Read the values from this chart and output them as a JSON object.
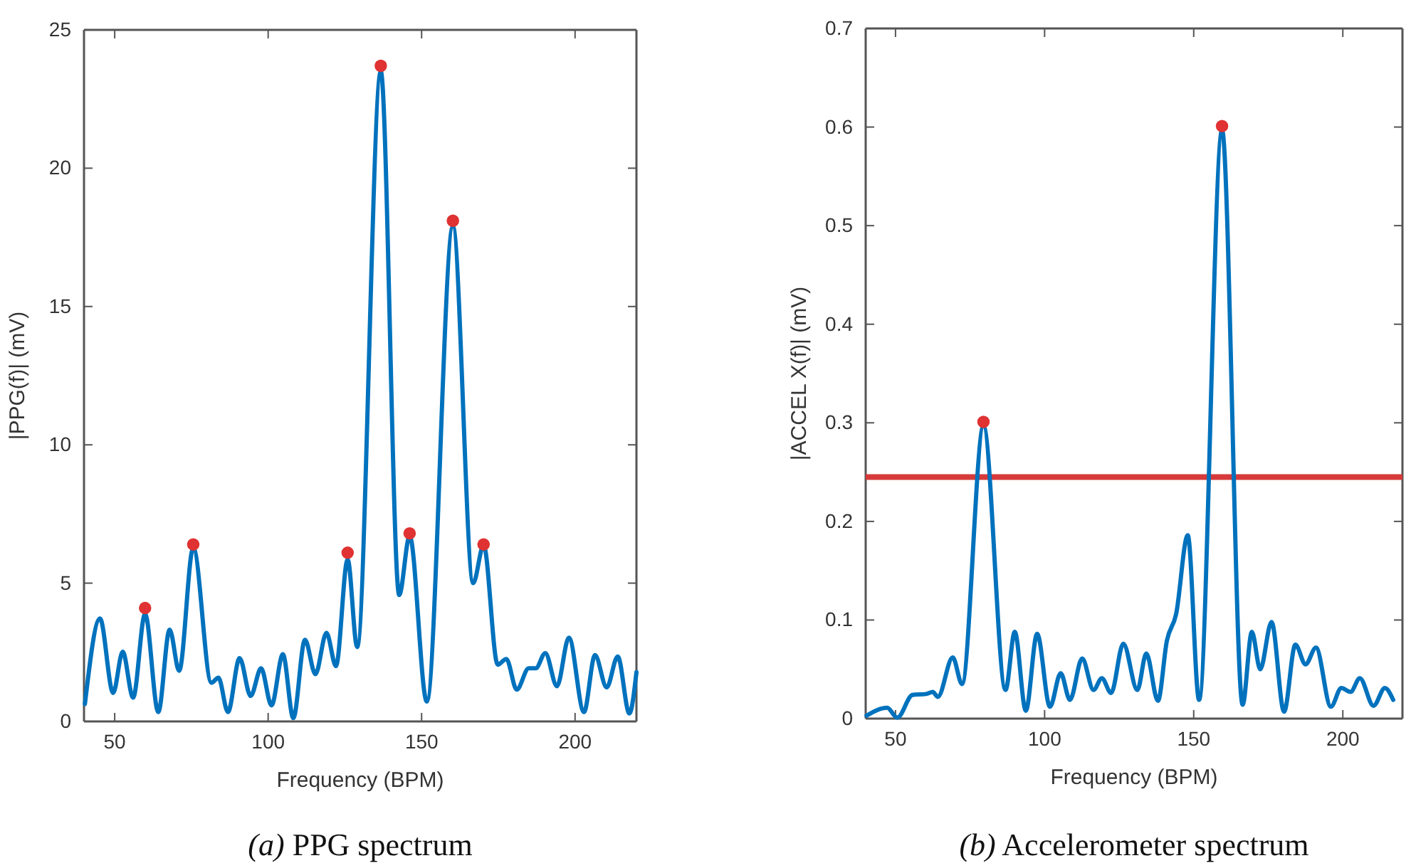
{
  "chart_data": [
    {
      "type": "line",
      "xlabel": "Frequency (BPM)",
      "ylabel": "|PPG(f)| (mV)",
      "xlim": [
        40,
        220
      ],
      "ylim": [
        0,
        25
      ],
      "xticks": [
        50,
        100,
        150,
        200
      ],
      "yticks": [
        0,
        5,
        10,
        15,
        20,
        25
      ],
      "grid": false,
      "annotations": [
        "(a) PPG spectrum"
      ],
      "series": [
        {
          "type": "line",
          "color": "#0072bd",
          "marker": "none",
          "x": [
            40.3,
            45.2,
            49.5,
            52.6,
            56,
            59.9,
            64.2,
            67.9,
            71,
            75.6,
            81.5,
            83.8,
            86.9,
            90.7,
            94.3,
            97.7,
            101.1,
            104.8,
            108.2,
            112,
            115.4,
            119,
            122.1,
            125.9,
            129,
            136.7,
            142.7,
            146.1,
            151.7,
            160.2,
            166.8,
            170.2,
            174.8,
            177.6,
            181,
            184.9,
            187.2,
            190.3,
            194.1,
            198,
            202.9,
            206.5,
            210.3,
            213.9,
            217.7,
            220
          ],
          "values": [
            0.63,
            3.72,
            1.03,
            2.52,
            0.86,
            3.89,
            0.34,
            3.32,
            1.83,
            6.28,
            1.4,
            1.58,
            0.34,
            2.29,
            0.92,
            1.92,
            0.58,
            2.43,
            0.12,
            2.95,
            1.71,
            3.2,
            2.0,
            5.86,
            2.69,
            23.5,
            4.57,
            6.71,
            0.72,
            17.9,
            5.0,
            6.37,
            2.05,
            2.26,
            1.15,
            1.92,
            1.92,
            2.47,
            1.27,
            3.03,
            0.34,
            2.4,
            1.23,
            2.35,
            0.29,
            1.78
          ]
        },
        {
          "type": "scatter",
          "color": "#e03232",
          "marker": "circle",
          "x": [
            59.9,
            75.6,
            125.9,
            136.7,
            146.1,
            160.2,
            170.2
          ],
          "values": [
            4.1,
            6.4,
            6.1,
            23.7,
            6.8,
            18.1,
            6.4
          ]
        }
      ]
    },
    {
      "type": "line",
      "xlabel": "Frequency (BPM)",
      "ylabel": "|ACCEL X(f)| (mV)",
      "xlim": [
        40,
        220
      ],
      "ylim": [
        0,
        0.7
      ],
      "xticks": [
        50,
        100,
        150,
        200
      ],
      "yticks": [
        0,
        0.1,
        0.2,
        0.3,
        0.4,
        0.5,
        0.6,
        0.7
      ],
      "grid": false,
      "annotations": [
        "(b) Accelerometer spectrum"
      ],
      "ref_lines": [
        {
          "axis": "y",
          "value": 0.245,
          "color": "#d63a3a"
        }
      ],
      "series": [
        {
          "type": "line",
          "color": "#0072bd",
          "marker": "none",
          "x": [
            40.3,
            47.2,
            50.6,
            55.7,
            60.3,
            62.5,
            64.2,
            69.2,
            72.3,
            79.5,
            86.9,
            90,
            93.7,
            97.5,
            101.8,
            105.4,
            108.5,
            112.6,
            116.4,
            119.2,
            122.3,
            126.4,
            131.1,
            134.1,
            138,
            141,
            144.1,
            148,
            151.8,
            159.5,
            166.4,
            169.5,
            172.3,
            176.1,
            180.3,
            184.1,
            187.5,
            191,
            196,
            199.5,
            202.6,
            205.7,
            210.3,
            214.1,
            216.9
          ],
          "values": [
            0.003,
            0.011,
            0.001,
            0.024,
            0.025,
            0.027,
            0.022,
            0.062,
            0.035,
            0.297,
            0.029,
            0.088,
            0.008,
            0.086,
            0.012,
            0.046,
            0.019,
            0.061,
            0.029,
            0.041,
            0.026,
            0.076,
            0.029,
            0.066,
            0.018,
            0.079,
            0.106,
            0.186,
            0.019,
            0.597,
            0.014,
            0.088,
            0.05,
            0.098,
            0.007,
            0.075,
            0.055,
            0.072,
            0.012,
            0.031,
            0.027,
            0.041,
            0.013,
            0.031,
            0.019
          ]
        },
        {
          "type": "scatter",
          "color": "#e03232",
          "marker": "circle",
          "x": [
            79.5,
            159.5
          ],
          "values": [
            0.301,
            0.601
          ]
        }
      ]
    }
  ]
}
